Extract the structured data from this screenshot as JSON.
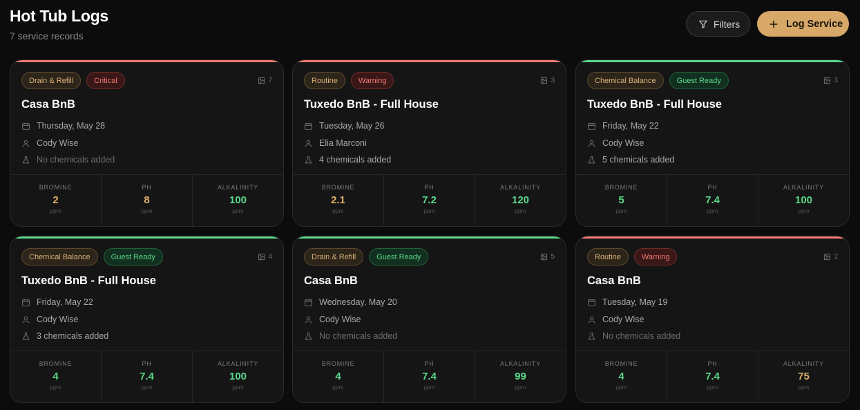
{
  "header": {
    "title": "Hot Tub Logs",
    "subtitle": "7 service records"
  },
  "actions": {
    "filters_label": "Filters",
    "log_label": "Log Service"
  },
  "colors": {
    "accent_gold": "#d7a868",
    "ok_green": "#5bd88a",
    "warn_gold": "#e0b068",
    "critical_red": "#f07a72"
  },
  "metric_labels": {
    "bromine": "BROMINE",
    "ph": "PH",
    "alkalinity": "ALKALINITY",
    "unit": "ppm"
  },
  "cards": [
    {
      "type": "Drain & Refill",
      "status": "Critical",
      "status_kind": "critical",
      "photos": "7",
      "title": "Casa BnB",
      "date": "Thursday, May 28",
      "tech": "Cody Wise",
      "chemicals": "No chemicals added",
      "chemicals_none": true,
      "bromine": "2",
      "bromine_state": "warn",
      "ph": "8",
      "ph_state": "warn",
      "alkalinity": "100",
      "alkalinity_state": "ok",
      "accent": "#f07a72"
    },
    {
      "type": "Routine",
      "status": "Warning",
      "status_kind": "warning",
      "photos": "3",
      "title": "Tuxedo BnB - Full House",
      "date": "Tuesday, May 26",
      "tech": "Elia Marconi",
      "chemicals": "4 chemicals added",
      "chemicals_none": false,
      "bromine": "2.1",
      "bromine_state": "warn",
      "ph": "7.2",
      "ph_state": "ok",
      "alkalinity": "120",
      "alkalinity_state": "ok",
      "accent": "#f07a72"
    },
    {
      "type": "Chemical Balance",
      "status": "Guest Ready",
      "status_kind": "ready",
      "photos": "3",
      "title": "Tuxedo BnB - Full House",
      "date": "Friday, May 22",
      "tech": "Cody Wise",
      "chemicals": "5 chemicals added",
      "chemicals_none": false,
      "bromine": "5",
      "bromine_state": "ok",
      "ph": "7.4",
      "ph_state": "ok",
      "alkalinity": "100",
      "alkalinity_state": "ok",
      "accent": "#5bd88a"
    },
    {
      "type": "Chemical Balance",
      "status": "Guest Ready",
      "status_kind": "ready",
      "photos": "4",
      "title": "Tuxedo BnB - Full House",
      "date": "Friday, May 22",
      "tech": "Cody Wise",
      "chemicals": "3 chemicals added",
      "chemicals_none": false,
      "bromine": "4",
      "bromine_state": "ok",
      "ph": "7.4",
      "ph_state": "ok",
      "alkalinity": "100",
      "alkalinity_state": "ok",
      "accent": "#5bd88a"
    },
    {
      "type": "Drain & Refill",
      "status": "Guest Ready",
      "status_kind": "ready",
      "photos": "5",
      "title": "Casa BnB",
      "date": "Wednesday, May 20",
      "tech": "Cody Wise",
      "chemicals": "No chemicals added",
      "chemicals_none": true,
      "bromine": "4",
      "bromine_state": "ok",
      "ph": "7.4",
      "ph_state": "ok",
      "alkalinity": "99",
      "alkalinity_state": "ok",
      "accent": "#5bd88a"
    },
    {
      "type": "Routine",
      "status": "Warning",
      "status_kind": "warning",
      "photos": "2",
      "title": "Casa BnB",
      "date": "Tuesday, May 19",
      "tech": "Cody Wise",
      "chemicals": "No chemicals added",
      "chemicals_none": true,
      "bromine": "4",
      "bromine_state": "ok",
      "ph": "7.4",
      "ph_state": "ok",
      "alkalinity": "75",
      "alkalinity_state": "warn",
      "accent": "#f07a72"
    }
  ]
}
